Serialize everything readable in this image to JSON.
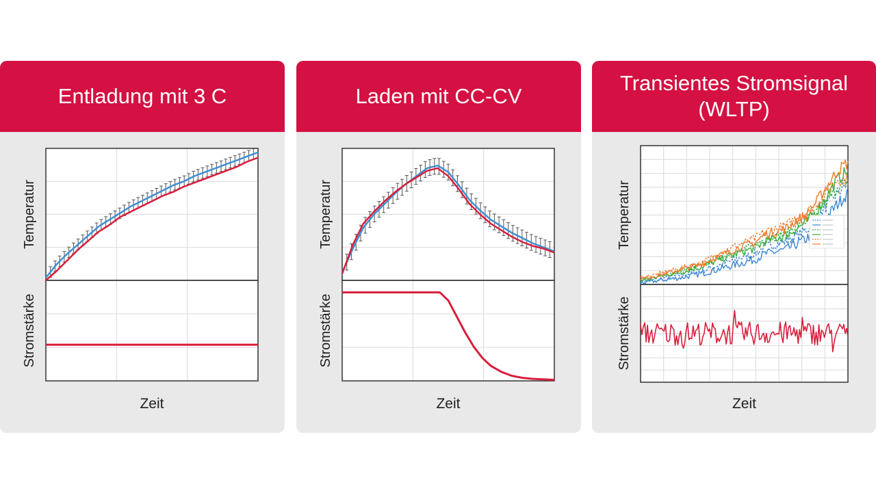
{
  "colors": {
    "header": "#d41142",
    "panel": "#e9e9e9",
    "measured": "#3f8fd0",
    "simulated": "#d81e3c",
    "current": "#d81e3c",
    "error_bars": "#555555",
    "wltp_orange": "#f07a2a",
    "wltp_green": "#3aab3e",
    "wltp_blue": "#3a86d2"
  },
  "chart_data": [
    {
      "type": "line",
      "title": "Entladung mit 3 C",
      "xlabel": "Zeit",
      "ylabel_top": "Temperatur",
      "ylabel_bottom": "Stromstärke",
      "grid": true,
      "x": [
        0,
        0.05,
        0.1,
        0.15,
        0.2,
        0.25,
        0.3,
        0.35,
        0.4,
        0.45,
        0.5,
        0.55,
        0.6,
        0.65,
        0.7,
        0.75,
        0.8,
        0.85,
        0.9,
        0.95,
        1.0
      ],
      "series": [
        {
          "role": "measured",
          "values": [
            0.02,
            0.12,
            0.2,
            0.27,
            0.34,
            0.41,
            0.46,
            0.51,
            0.56,
            0.6,
            0.64,
            0.68,
            0.72,
            0.75,
            0.79,
            0.82,
            0.85,
            0.88,
            0.91,
            0.94,
            0.97
          ]
        },
        {
          "role": "simulated",
          "values": [
            0.0,
            0.07,
            0.15,
            0.23,
            0.3,
            0.37,
            0.42,
            0.48,
            0.52,
            0.56,
            0.6,
            0.64,
            0.67,
            0.71,
            0.74,
            0.77,
            0.8,
            0.83,
            0.86,
            0.9,
            0.93
          ]
        }
      ],
      "error_bar": 0.04,
      "current": {
        "x": [
          0,
          1
        ],
        "values": [
          0.36,
          0.36
        ]
      }
    },
    {
      "type": "line",
      "title": "Laden mit CC-CV",
      "xlabel": "Zeit",
      "ylabel_top": "Temperatur",
      "ylabel_bottom": "Stromstärke",
      "grid": true,
      "x": [
        0,
        0.05,
        0.1,
        0.15,
        0.2,
        0.25,
        0.3,
        0.35,
        0.4,
        0.45,
        0.5,
        0.55,
        0.6,
        0.65,
        0.7,
        0.75,
        0.8,
        0.85,
        0.9,
        0.95,
        1.0
      ],
      "series": [
        {
          "role": "measured",
          "values": [
            0.06,
            0.24,
            0.4,
            0.5,
            0.58,
            0.66,
            0.73,
            0.79,
            0.85,
            0.87,
            0.82,
            0.72,
            0.61,
            0.53,
            0.46,
            0.41,
            0.36,
            0.32,
            0.28,
            0.25,
            0.22
          ]
        },
        {
          "role": "simulated",
          "values": [
            0.05,
            0.27,
            0.43,
            0.52,
            0.6,
            0.67,
            0.73,
            0.78,
            0.83,
            0.85,
            0.79,
            0.69,
            0.58,
            0.5,
            0.43,
            0.38,
            0.33,
            0.29,
            0.26,
            0.24,
            0.21
          ]
        }
      ],
      "error_bar": 0.06,
      "current": {
        "x": [
          0,
          0.46,
          0.5,
          0.52,
          0.55,
          0.58,
          0.62,
          0.66,
          0.7,
          0.75,
          0.8,
          0.85,
          0.9,
          1.0
        ],
        "values": [
          0.88,
          0.88,
          0.8,
          0.72,
          0.6,
          0.48,
          0.34,
          0.23,
          0.15,
          0.09,
          0.05,
          0.03,
          0.02,
          0.01
        ]
      }
    },
    {
      "type": "line",
      "title": "Transientes Stromsignal (WLTP)",
      "xlabel": "Zeit",
      "ylabel_top": "Temperatur",
      "ylabel_bottom": "Stromstärke",
      "grid": true,
      "legend": "right",
      "x": [
        0,
        0.1,
        0.2,
        0.3,
        0.4,
        0.5,
        0.55,
        0.6,
        0.7,
        0.75,
        0.8,
        0.85,
        0.9,
        0.95,
        1.0
      ],
      "series": [
        {
          "role": "orange-solid",
          "values": [
            0.04,
            0.07,
            0.11,
            0.15,
            0.22,
            0.28,
            0.3,
            0.36,
            0.4,
            0.46,
            0.5,
            0.6,
            0.71,
            0.82,
            0.88
          ]
        },
        {
          "role": "orange-dashed",
          "values": [
            0.05,
            0.08,
            0.12,
            0.16,
            0.24,
            0.3,
            0.33,
            0.38,
            0.42,
            0.48,
            0.52,
            0.58,
            0.68,
            0.76,
            0.75
          ]
        },
        {
          "role": "green-solid",
          "values": [
            0.03,
            0.06,
            0.09,
            0.13,
            0.19,
            0.24,
            0.26,
            0.31,
            0.35,
            0.4,
            0.45,
            0.53,
            0.64,
            0.76,
            0.82
          ]
        },
        {
          "role": "green-dashed",
          "values": [
            0.03,
            0.06,
            0.1,
            0.14,
            0.2,
            0.25,
            0.28,
            0.33,
            0.37,
            0.42,
            0.46,
            0.52,
            0.6,
            0.7,
            0.72
          ]
        },
        {
          "role": "blue-solid",
          "values": [
            0.01,
            0.03,
            0.05,
            0.08,
            0.12,
            0.16,
            0.18,
            0.22,
            0.25,
            0.29,
            0.33,
            0.4,
            0.49,
            0.58,
            0.66
          ]
        },
        {
          "role": "blue-dashed",
          "values": [
            0.02,
            0.04,
            0.07,
            0.1,
            0.15,
            0.2,
            0.22,
            0.27,
            0.31,
            0.35,
            0.39,
            0.47,
            0.57,
            0.66,
            0.73
          ]
        }
      ],
      "current": {
        "level": 0.5,
        "noise": 0.12
      }
    }
  ]
}
